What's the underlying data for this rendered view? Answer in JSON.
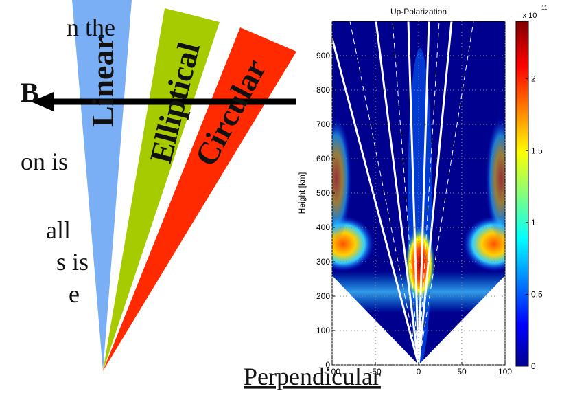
{
  "slide": {
    "text_lines": [
      "n the",
      "B",
      "on is",
      "all",
      "s is",
      "e"
    ],
    "wedges": [
      "Linear",
      "Elliptical",
      "Circular"
    ],
    "caption": "Perpendicular"
  },
  "chart_data": {
    "type": "heatmap",
    "title": "Up-Polarization",
    "y_label": "Height [km]",
    "xlim": [
      -100,
      100
    ],
    "ylim": [
      0,
      1000
    ],
    "xticks": [
      -100,
      -50,
      0,
      50,
      100
    ],
    "yticks": [
      0,
      100,
      200,
      300,
      400,
      500,
      600,
      700,
      800,
      900
    ],
    "grid": true,
    "colorbar": {
      "lim": [
        0,
        2.4
      ],
      "ticks": [
        0,
        0.5,
        1,
        1.5,
        2
      ],
      "exponent_base": "x 10",
      "exponent": "11"
    }
  }
}
